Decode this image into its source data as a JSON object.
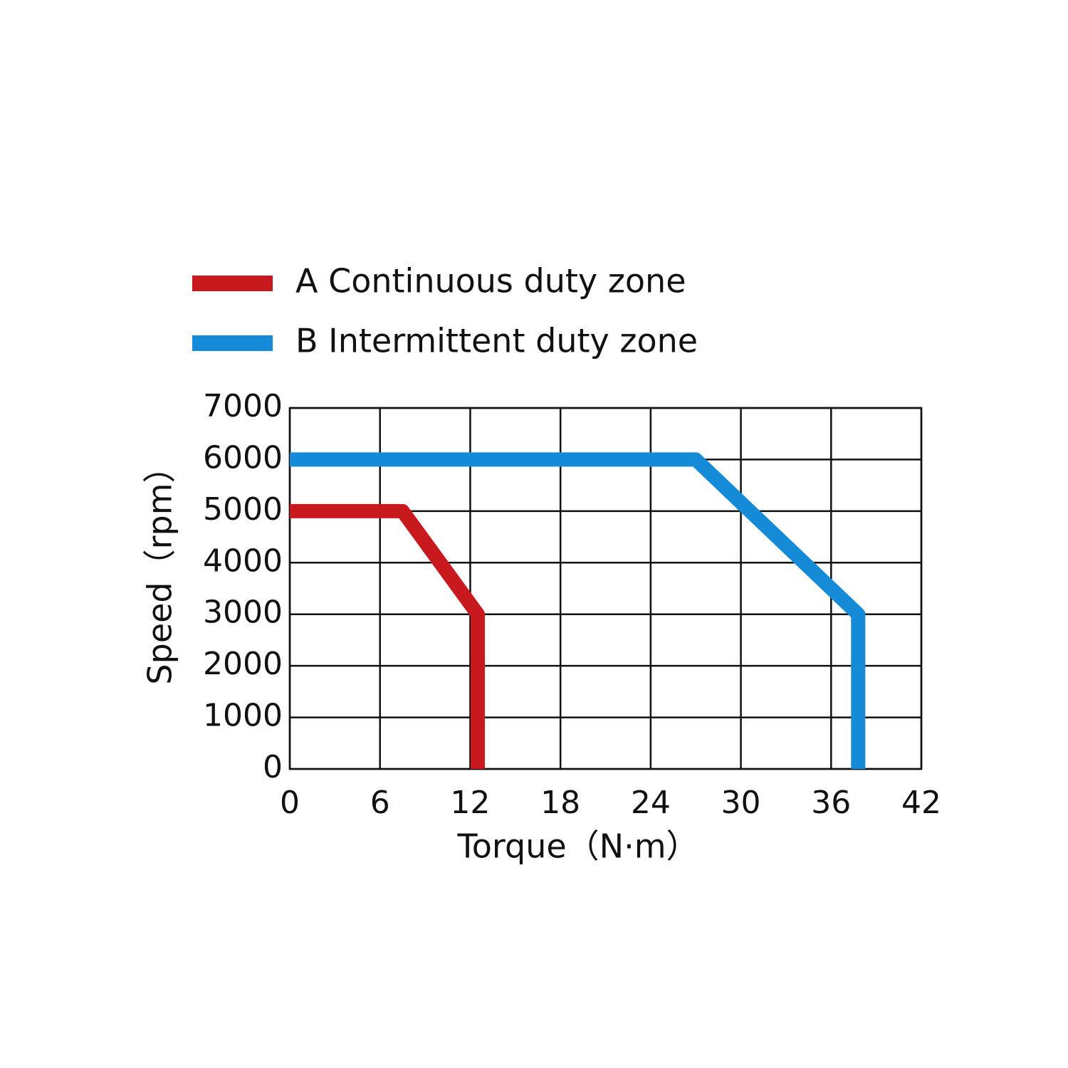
{
  "chart_data": {
    "type": "line",
    "xlabel": "Torque（N·m）",
    "ylabel": "Speed（rpm）",
    "series": [
      {
        "name": "A Continuous duty zone",
        "color": "#c8191f",
        "x": [
          0,
          7.5,
          12.5,
          12.5
        ],
        "values": [
          5000,
          5000,
          3000,
          0
        ]
      },
      {
        "name": "B Intermittent duty zone",
        "color": "#158ad6",
        "x": [
          0,
          27,
          37.8,
          37.8
        ],
        "values": [
          6000,
          6000,
          3000,
          0
        ]
      }
    ],
    "xlim": [
      0,
      42
    ],
    "xticks": [
      0,
      6,
      12,
      18,
      24,
      30,
      36,
      42
    ],
    "ylim": [
      0,
      7000
    ],
    "yticks": [
      0,
      1000,
      2000,
      3000,
      4000,
      5000,
      6000,
      7000
    ],
    "grid": true
  }
}
